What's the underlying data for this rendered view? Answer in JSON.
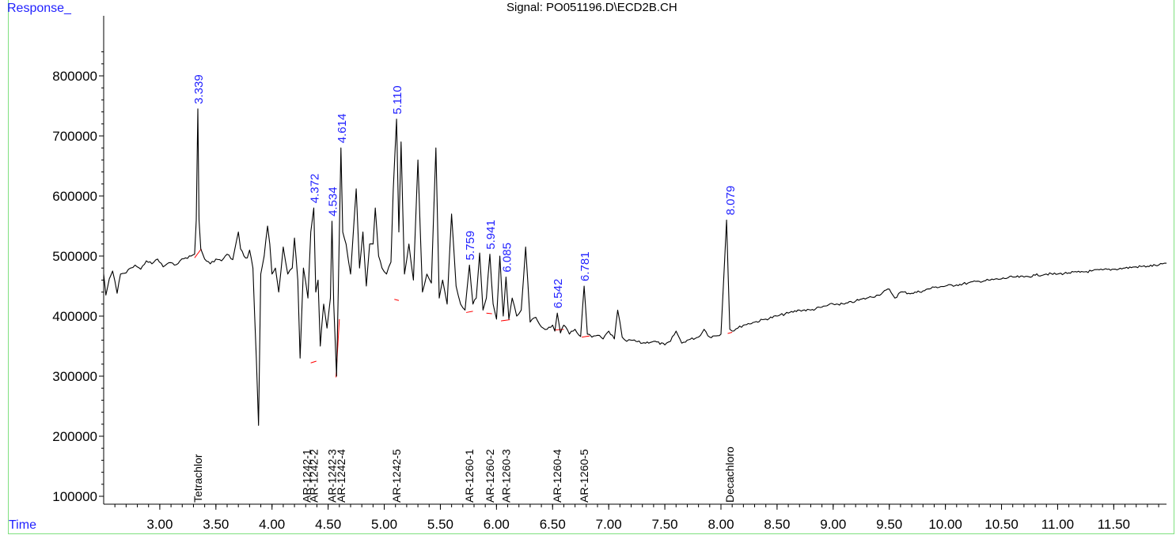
{
  "title": "Signal: PO051196.D\\ECD2B.CH",
  "y_axis_label": "Response_",
  "x_axis_label": "Time",
  "colors": {
    "trace": "#000000",
    "baseline": "#ff0000",
    "peak_label": "#1f1fff",
    "compound_label": "#000000",
    "frame": "#7fe07f"
  },
  "chart_data": {
    "type": "line",
    "title": "Signal: PO051196.D\\ECD2B.CH",
    "xlabel": "Time",
    "ylabel": "Response_",
    "xlim": [
      2.5,
      11.97
    ],
    "ylim": [
      90000,
      900000
    ],
    "x_ticks": [
      3.0,
      3.5,
      4.0,
      4.5,
      5.0,
      5.5,
      6.0,
      6.5,
      7.0,
      7.5,
      8.0,
      8.5,
      9.0,
      9.5,
      10.0,
      10.5,
      11.0,
      11.5
    ],
    "x_tick_labels": [
      "3.00",
      "3.50",
      "4.00",
      "4.50",
      "5.00",
      "5.50",
      "6.00",
      "6.50",
      "7.00",
      "7.50",
      "8.00",
      "8.50",
      "9.00",
      "9.50",
      "10.00",
      "10.50",
      "11.00",
      "11.50"
    ],
    "y_ticks": [
      100000,
      200000,
      300000,
      400000,
      500000,
      600000,
      700000,
      800000
    ],
    "y_tick_labels": [
      "100000",
      "200000",
      "300000",
      "400000",
      "500000",
      "600000",
      "700000",
      "800000"
    ],
    "grid": false,
    "signal": {
      "x": [
        2.5,
        2.52,
        2.55,
        2.58,
        2.62,
        2.65,
        2.7,
        2.74,
        2.78,
        2.83,
        2.88,
        2.93,
        2.98,
        3.03,
        3.08,
        3.13,
        3.18,
        3.23,
        3.28,
        3.31,
        3.325,
        3.339,
        3.35,
        3.365,
        3.4,
        3.45,
        3.5,
        3.55,
        3.6,
        3.65,
        3.7,
        3.72,
        3.75,
        3.78,
        3.8,
        3.83,
        3.86,
        3.88,
        3.9,
        3.93,
        3.96,
        3.98,
        4.0,
        4.03,
        4.06,
        4.1,
        4.14,
        4.18,
        4.2,
        4.23,
        4.25,
        4.28,
        4.32,
        4.345,
        4.372,
        4.39,
        4.41,
        4.43,
        4.46,
        4.49,
        4.52,
        4.534,
        4.55,
        4.575,
        4.59,
        4.614,
        4.63,
        4.66,
        4.7,
        4.75,
        4.78,
        4.81,
        4.84,
        4.87,
        4.9,
        4.92,
        4.95,
        4.98,
        5.02,
        5.06,
        5.08,
        5.11,
        5.13,
        5.15,
        5.18,
        5.22,
        5.26,
        5.3,
        5.34,
        5.38,
        5.42,
        5.46,
        5.49,
        5.52,
        5.56,
        5.6,
        5.64,
        5.68,
        5.72,
        5.759,
        5.79,
        5.82,
        5.85,
        5.88,
        5.91,
        5.941,
        5.97,
        6.0,
        6.03,
        6.06,
        6.085,
        6.11,
        6.14,
        6.18,
        6.22,
        6.26,
        6.3,
        6.35,
        6.4,
        6.45,
        6.5,
        6.52,
        6.542,
        6.57,
        6.6,
        6.65,
        6.7,
        6.75,
        6.781,
        6.81,
        6.85,
        6.9,
        6.95,
        7.0,
        7.05,
        7.08,
        7.12,
        7.16,
        7.2,
        7.3,
        7.4,
        7.5,
        7.55,
        7.6,
        7.65,
        7.7,
        7.8,
        7.85,
        7.9,
        8.0,
        8.05,
        8.079,
        8.1,
        8.15,
        8.2,
        8.3,
        8.4,
        8.5,
        8.6,
        8.7,
        8.8,
        8.9,
        9.0,
        9.1,
        9.2,
        9.3,
        9.4,
        9.5,
        9.55,
        9.6,
        9.7,
        9.8,
        9.9,
        10.0,
        10.1,
        10.2,
        10.3,
        10.4,
        10.5,
        10.6,
        10.7,
        10.8,
        10.9,
        11.0,
        11.1,
        11.2,
        11.3,
        11.4,
        11.5,
        11.6,
        11.7,
        11.8,
        11.9,
        11.97
      ],
      "y": [
        470000,
        435000,
        462000,
        475000,
        438000,
        470000,
        472000,
        480000,
        485000,
        478000,
        492000,
        487000,
        495000,
        482000,
        489000,
        485000,
        492000,
        497000,
        500000,
        503000,
        560000,
        745000,
        560000,
        512000,
        495000,
        487000,
        495000,
        492000,
        503000,
        494000,
        540000,
        512000,
        500000,
        497000,
        510000,
        480000,
        330000,
        218000,
        470000,
        500000,
        550000,
        520000,
        470000,
        480000,
        440000,
        515000,
        470000,
        480000,
        530000,
        460000,
        330000,
        480000,
        430000,
        540000,
        580000,
        440000,
        460000,
        350000,
        420000,
        380000,
        430000,
        558000,
        420000,
        300000,
        440000,
        680000,
        540000,
        520000,
        470000,
        612000,
        480000,
        540000,
        450000,
        520000,
        520000,
        580000,
        500000,
        480000,
        470000,
        490000,
        610000,
        728000,
        540000,
        690000,
        470000,
        520000,
        460000,
        660000,
        440000,
        470000,
        455000,
        680000,
        430000,
        460000,
        420000,
        570000,
        450000,
        420000,
        410000,
        485000,
        420000,
        430000,
        505000,
        410000,
        430000,
        503000,
        420000,
        395000,
        500000,
        400000,
        465000,
        395000,
        430000,
        400000,
        410000,
        515000,
        390000,
        398000,
        382000,
        378000,
        385000,
        375000,
        405000,
        372000,
        385000,
        370000,
        378000,
        366000,
        450000,
        370000,
        365000,
        368000,
        362000,
        375000,
        362000,
        410000,
        365000,
        358000,
        360000,
        355000,
        358000,
        352000,
        358000,
        375000,
        355000,
        360000,
        365000,
        378000,
        365000,
        370000,
        560000,
        378000,
        375000,
        380000,
        385000,
        390000,
        395000,
        400000,
        405000,
        410000,
        410000,
        415000,
        420000,
        420000,
        425000,
        430000,
        435000,
        445000,
        430000,
        440000,
        438000,
        442000,
        448000,
        450000,
        452000,
        455000,
        458000,
        460000,
        462000,
        465000,
        465000,
        468000,
        470000,
        470000,
        472000,
        473000,
        475000,
        477000,
        478000,
        480000,
        482000,
        483000,
        485000,
        488000
      ]
    },
    "baseline_segments": [
      [
        [
          3.31,
          497000
        ],
        [
          3.37,
          512000
        ]
      ],
      [
        [
          4.345,
          322000
        ],
        [
          4.395,
          325000
        ]
      ],
      [
        [
          4.57,
          298000
        ],
        [
          4.6,
          395000
        ]
      ],
      [
        [
          5.09,
          428000
        ],
        [
          5.13,
          426000
        ]
      ],
      [
        [
          5.73,
          406000
        ],
        [
          5.79,
          408000
        ]
      ],
      [
        [
          5.91,
          405000
        ],
        [
          5.96,
          404000
        ]
      ],
      [
        [
          6.04,
          392000
        ],
        [
          6.12,
          394000
        ]
      ],
      [
        [
          6.52,
          377000
        ],
        [
          6.6,
          378000
        ]
      ],
      [
        [
          6.76,
          365000
        ],
        [
          6.83,
          367000
        ]
      ],
      [
        [
          8.06,
          371000
        ],
        [
          8.1,
          373000
        ]
      ]
    ],
    "peak_labels": [
      {
        "x": 3.339,
        "y": 745000,
        "label": "3.339"
      },
      {
        "x": 4.372,
        "y": 580000,
        "label": "4.372"
      },
      {
        "x": 4.534,
        "y": 558000,
        "label": "4.534"
      },
      {
        "x": 4.614,
        "y": 680000,
        "label": "4.614"
      },
      {
        "x": 5.11,
        "y": 728000,
        "label": "5.110"
      },
      {
        "x": 5.759,
        "y": 485000,
        "label": "5.759"
      },
      {
        "x": 5.941,
        "y": 503000,
        "label": "5.941"
      },
      {
        "x": 6.085,
        "y": 465000,
        "label": "6.085"
      },
      {
        "x": 6.542,
        "y": 405000,
        "label": "6.542"
      },
      {
        "x": 6.781,
        "y": 450000,
        "label": "6.781"
      },
      {
        "x": 8.079,
        "y": 560000,
        "label": "8.079"
      }
    ],
    "compound_labels": [
      {
        "x": 3.339,
        "label": "Tetrachlor"
      },
      {
        "x": 4.31,
        "label": "AR-1242-1"
      },
      {
        "x": 4.372,
        "label": "AR-1242-2"
      },
      {
        "x": 4.534,
        "label": "AR-1242-3"
      },
      {
        "x": 4.614,
        "label": "AR-1242-4"
      },
      {
        "x": 5.11,
        "label": "AR-1242-5"
      },
      {
        "x": 5.759,
        "label": "AR-1260-1"
      },
      {
        "x": 5.941,
        "label": "AR-1260-2"
      },
      {
        "x": 6.085,
        "label": "AR-1260-3"
      },
      {
        "x": 6.542,
        "label": "AR-1260-4"
      },
      {
        "x": 6.781,
        "label": "AR-1260-5"
      },
      {
        "x": 8.079,
        "label": "Decachloro"
      }
    ]
  }
}
